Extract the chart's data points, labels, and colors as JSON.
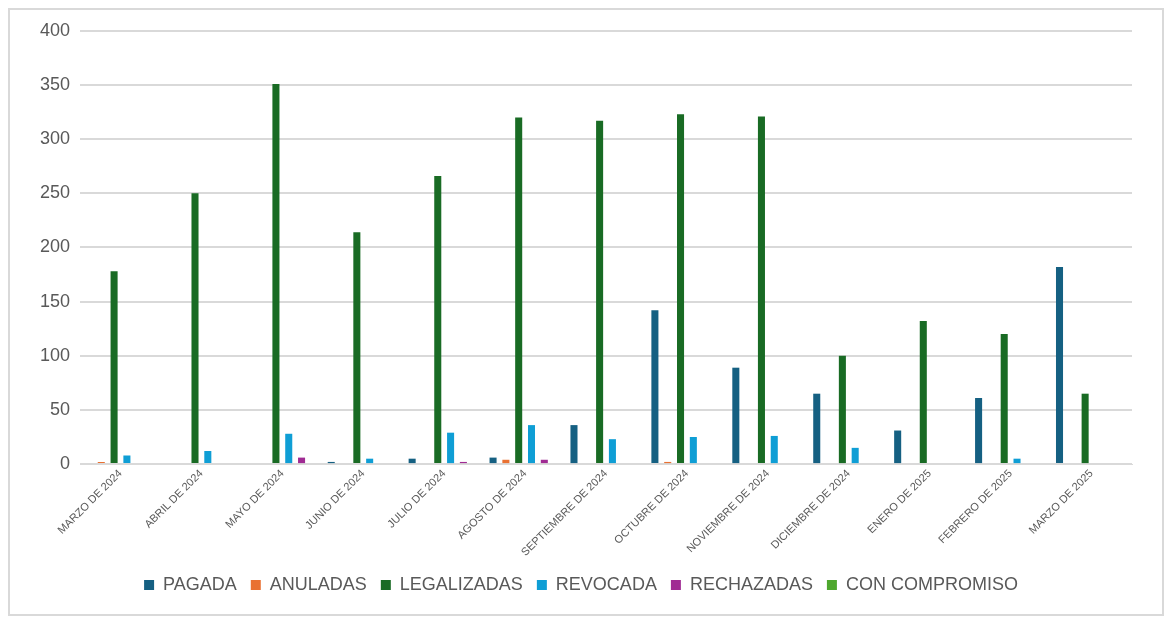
{
  "chart_data": {
    "type": "bar",
    "categories": [
      "MARZO DE 2024",
      "ABRIL DE 2024",
      "MAYO DE 2024",
      "JUNIO DE 2024",
      "JULIO DE 2024",
      "AGOSTO DE 2024",
      "SEPTIEMBRE DE 2024",
      "OCTUBRE DE 2024",
      "NOVIEMBRE DE 2024",
      "DICIEMBRE DE 2024",
      "ENERO DE 2025",
      "FEBRERO DE 2025",
      "MARZO DE 2025"
    ],
    "series": [
      {
        "name": "PAGADA",
        "color": "#156082",
        "values": [
          0,
          0,
          0,
          2,
          5,
          6,
          36,
          142,
          89,
          65,
          31,
          61,
          182
        ]
      },
      {
        "name": "ANULADAS",
        "color": "#e97132",
        "values": [
          2,
          0,
          0,
          0,
          0,
          4,
          0,
          2,
          0,
          0,
          0,
          0,
          0
        ]
      },
      {
        "name": "LEGALIZADAS",
        "color": "#196b24",
        "values": [
          178,
          250,
          351,
          214,
          266,
          320,
          317,
          323,
          321,
          100,
          132,
          120,
          65
        ]
      },
      {
        "name": "REVOCADA",
        "color": "#0f9ed5",
        "values": [
          8,
          12,
          28,
          5,
          29,
          36,
          23,
          25,
          26,
          15,
          0,
          5,
          0
        ]
      },
      {
        "name": "RECHAZADAS",
        "color": "#a02b93",
        "values": [
          0,
          0,
          6,
          0,
          2,
          4,
          0,
          0,
          0,
          0,
          0,
          0,
          0
        ]
      },
      {
        "name": "CON COMPROMISO",
        "color": "#4ea72e",
        "values": [
          0,
          0,
          0,
          0,
          0,
          0,
          0,
          0,
          0,
          0,
          0,
          0,
          0
        ]
      }
    ],
    "ylim": [
      0,
      400
    ],
    "yticks": [
      0,
      50,
      100,
      150,
      200,
      250,
      300,
      350,
      400
    ],
    "grid": "y",
    "legend": "bottom"
  }
}
